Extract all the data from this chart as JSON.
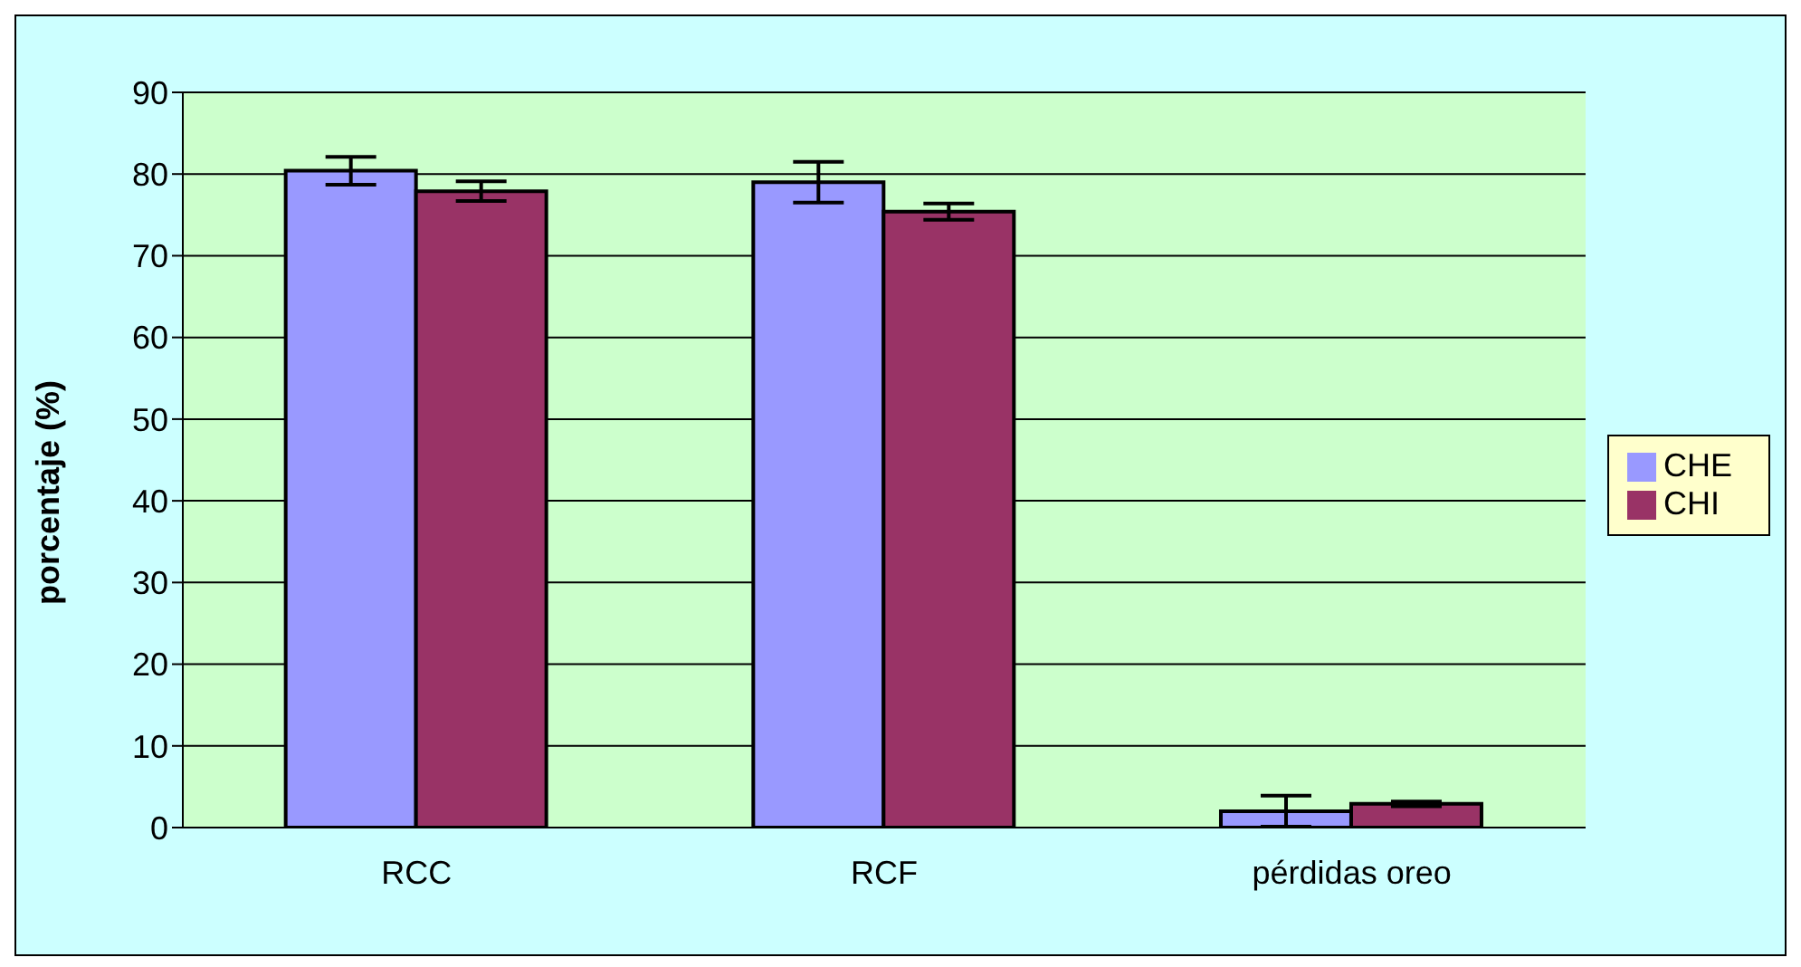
{
  "chart_data": {
    "type": "bar",
    "ylabel": "porcentaje (%)",
    "categories": [
      "RCC",
      "RCF",
      "pérdidas oreo"
    ],
    "series": [
      {
        "name": "CHE",
        "color": "#9999ff",
        "values": [
          80.4,
          79.0,
          2.0
        ],
        "errors": [
          1.7,
          2.5,
          1.9
        ]
      },
      {
        "name": "CHI",
        "color": "#993366",
        "values": [
          77.9,
          75.4,
          2.9
        ],
        "errors": [
          1.2,
          1.0,
          0.3
        ]
      }
    ],
    "ylim": [
      0,
      90
    ],
    "yticks": [
      0,
      10,
      20,
      30,
      40,
      50,
      60,
      70,
      80,
      90
    ],
    "grid": "y",
    "legend": "right"
  }
}
